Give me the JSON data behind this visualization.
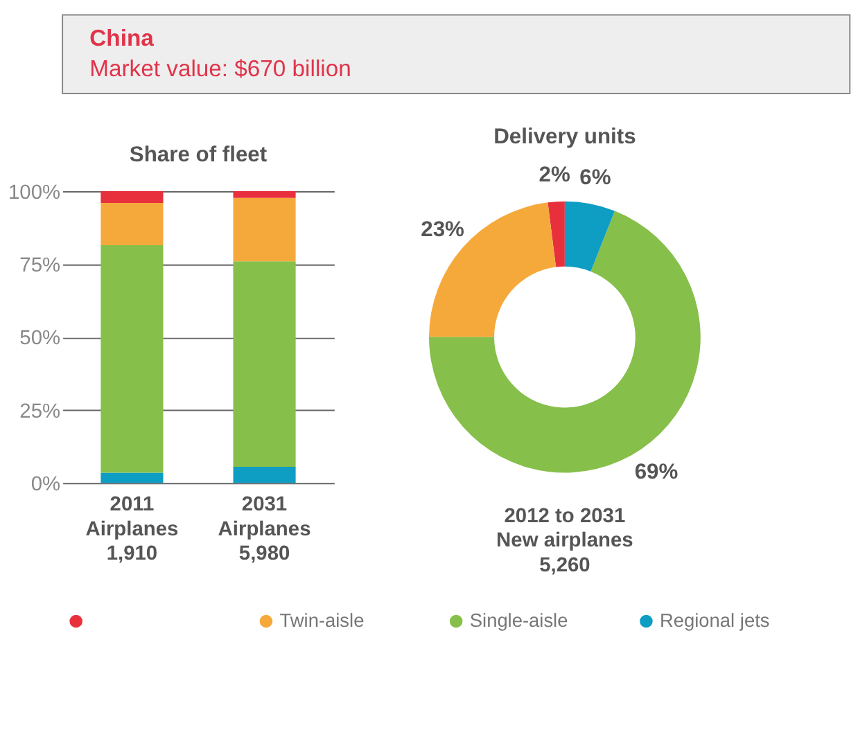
{
  "chart_data": [
    {
      "type": "bar",
      "title": "China",
      "subtitle": "Market value: $670 billion",
      "xlabel": "Share of fleet",
      "stacked": true,
      "categories": [
        "2011\nAirplanes\n1,910",
        "2031\nAirplanes\n5,980"
      ],
      "series": [
        {
          "color": "#0e9dc3",
          "values": [
            3.5,
            5.5
          ]
        },
        {
          "color": "#86bf4a",
          "values": [
            78,
            70.5
          ]
        },
        {
          "color": "#f6a93b",
          "values": [
            14.5,
            21.7
          ]
        },
        {
          "color": "#e8303d",
          "values": [
            4,
            2.3
          ]
        }
      ],
      "ylim": [
        0,
        100
      ],
      "yticks": [
        {
          "value": 0,
          "label": "0%"
        },
        {
          "value": 25,
          "label": "25%"
        },
        {
          "value": 50,
          "label": "50%"
        },
        {
          "value": 75,
          "label": "75%"
        },
        {
          "value": 100,
          "label": "100%"
        }
      ],
      "grid": "y"
    },
    {
      "type": "donut",
      "xlabel": "Delivery units",
      "annotations": [
        "2012 to 2031\nNew airplanes\n5,260"
      ],
      "categories": [
        null,
        "Twin-aisle",
        "Single-aisle",
        "Regional jets"
      ],
      "values": [
        2,
        23,
        69,
        6
      ],
      "colors": [
        "#e8303d",
        "#f6a93b",
        "#86bf4a",
        "#0e9dc3"
      ],
      "value_labels": [
        "2%",
        "23%",
        "69%",
        "6%"
      ],
      "legend": "bottom"
    }
  ]
}
